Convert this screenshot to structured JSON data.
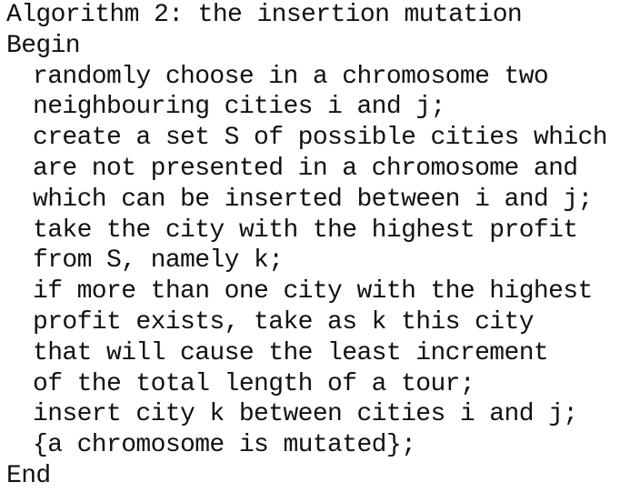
{
  "algorithm": {
    "title": "Algorithm 2: the insertion mutation",
    "begin": "Begin",
    "body_lines": [
      "randomly choose in a chromosome two",
      "neighbouring cities i and j;",
      "create a set S of possible cities which",
      "are not presented in a chromosome and",
      "which can be inserted between i and j;",
      "take the city with the highest profit",
      "from S, namely k;",
      "if more than one city with the highest",
      "profit exists, take as k this city",
      "that will cause the least increment",
      "of the total length of a tour;",
      "insert city k between cities i and j;",
      "{a chromosome is mutated};"
    ],
    "end": "End"
  }
}
